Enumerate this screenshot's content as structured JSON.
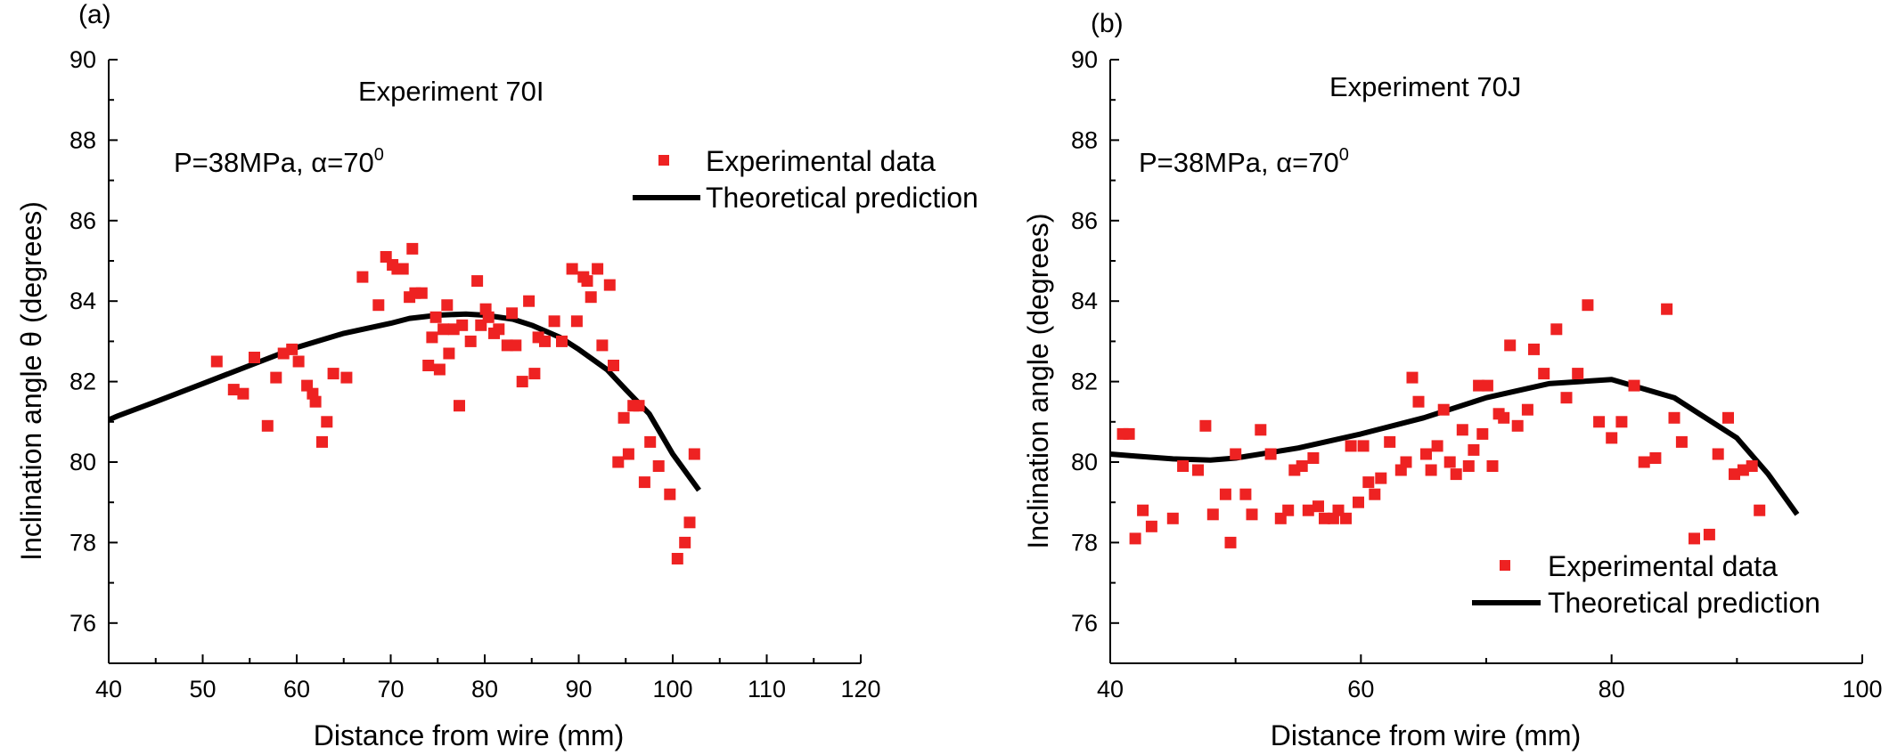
{
  "colors": {
    "marker": "#ee2222",
    "line": "#000000",
    "axis": "#000000"
  },
  "chart_data": [
    {
      "type": "scatter",
      "panel_label": "(a)",
      "title": "Experiment 70I",
      "annotation": "P=38MPa, α=70",
      "annotation_sup": "0",
      "xlabel": "Distance from wire (mm)",
      "ylabel": "Inclination angle θ (degrees)",
      "xlim": [
        40,
        120
      ],
      "ylim": [
        75,
        90
      ],
      "xticks": [
        40,
        50,
        60,
        70,
        80,
        90,
        100,
        110,
        120
      ],
      "yticks": [
        76,
        78,
        80,
        82,
        84,
        86,
        88,
        90
      ],
      "legend_position": "top-right",
      "series": [
        {
          "name": "Experimental data",
          "kind": "scatter",
          "points": [
            [
              51.5,
              82.5
            ],
            [
              53.3,
              81.8
            ],
            [
              54.3,
              81.7
            ],
            [
              55.5,
              82.6
            ],
            [
              56.9,
              80.9
            ],
            [
              57.8,
              82.1
            ],
            [
              58.6,
              82.7
            ],
            [
              59.5,
              82.8
            ],
            [
              60.2,
              82.5
            ],
            [
              61.1,
              81.9
            ],
            [
              61.7,
              81.7
            ],
            [
              62.0,
              81.5
            ],
            [
              62.7,
              80.5
            ],
            [
              63.2,
              81.0
            ],
            [
              63.9,
              82.2
            ],
            [
              65.3,
              82.1
            ],
            [
              67.0,
              84.6
            ],
            [
              68.7,
              83.9
            ],
            [
              69.5,
              85.1
            ],
            [
              70.2,
              84.9
            ],
            [
              70.7,
              84.8
            ],
            [
              71.3,
              84.8
            ],
            [
              72.0,
              84.1
            ],
            [
              72.3,
              85.3
            ],
            [
              72.6,
              84.2
            ],
            [
              73.3,
              84.2
            ],
            [
              74.0,
              82.4
            ],
            [
              74.4,
              83.1
            ],
            [
              74.8,
              83.6
            ],
            [
              75.2,
              82.3
            ],
            [
              75.6,
              83.3
            ],
            [
              76.0,
              83.9
            ],
            [
              76.2,
              82.7
            ],
            [
              76.7,
              83.3
            ],
            [
              77.3,
              81.4
            ],
            [
              77.6,
              83.4
            ],
            [
              78.5,
              83.0
            ],
            [
              79.2,
              84.5
            ],
            [
              79.6,
              83.4
            ],
            [
              80.1,
              83.8
            ],
            [
              80.4,
              83.6
            ],
            [
              81.0,
              83.2
            ],
            [
              81.5,
              83.3
            ],
            [
              82.4,
              82.9
            ],
            [
              82.9,
              83.7
            ],
            [
              83.3,
              82.9
            ],
            [
              84.0,
              82.0
            ],
            [
              84.7,
              84.0
            ],
            [
              85.3,
              82.2
            ],
            [
              85.7,
              83.1
            ],
            [
              86.4,
              83.0
            ],
            [
              87.4,
              83.5
            ],
            [
              88.2,
              83.0
            ],
            [
              89.3,
              84.8
            ],
            [
              89.8,
              83.5
            ],
            [
              90.5,
              84.6
            ],
            [
              90.9,
              84.5
            ],
            [
              91.3,
              84.1
            ],
            [
              92.0,
              84.8
            ],
            [
              92.5,
              82.9
            ],
            [
              93.3,
              84.4
            ],
            [
              93.7,
              82.4
            ],
            [
              94.2,
              80.0
            ],
            [
              94.8,
              81.1
            ],
            [
              95.3,
              80.2
            ],
            [
              95.8,
              81.4
            ],
            [
              96.4,
              81.4
            ],
            [
              97.0,
              79.5
            ],
            [
              97.6,
              80.5
            ],
            [
              98.5,
              79.9
            ],
            [
              99.7,
              79.2
            ],
            [
              100.5,
              77.6
            ],
            [
              101.3,
              78.0
            ],
            [
              101.8,
              78.5
            ],
            [
              102.3,
              80.2
            ]
          ]
        },
        {
          "name": "Theoretical prediction",
          "kind": "line",
          "points": [
            [
              40,
              81.05
            ],
            [
              41,
              81.15
            ],
            [
              45,
              81.5
            ],
            [
              50,
              81.95
            ],
            [
              55,
              82.4
            ],
            [
              60,
              82.85
            ],
            [
              65,
              83.2
            ],
            [
              70,
              83.45
            ],
            [
              72,
              83.57
            ],
            [
              75,
              83.65
            ],
            [
              78,
              83.68
            ],
            [
              80,
              83.65
            ],
            [
              83,
              83.55
            ],
            [
              85,
              83.4
            ],
            [
              88,
              83.1
            ],
            [
              90,
              82.8
            ],
            [
              93,
              82.3
            ],
            [
              95,
              81.8
            ],
            [
              97.5,
              81.2
            ],
            [
              100,
              80.2
            ],
            [
              102.8,
              79.3
            ]
          ]
        }
      ]
    },
    {
      "type": "scatter",
      "panel_label": "(b)",
      "title": "Experiment 70J",
      "annotation": "P=38MPa, α=70",
      "annotation_sup": "0",
      "xlabel": "Distance from wire (mm)",
      "ylabel": "Inclination angle (degrees)",
      "xlim": [
        40,
        100
      ],
      "ylim": [
        75,
        90
      ],
      "xticks": [
        40,
        60,
        80,
        100
      ],
      "yticks": [
        76,
        78,
        80,
        82,
        84,
        86,
        88,
        90
      ],
      "legend_position": "bottom-right",
      "series": [
        {
          "name": "Experimental data",
          "kind": "scatter",
          "points": [
            [
              41.0,
              80.7
            ],
            [
              41.5,
              80.7
            ],
            [
              42.0,
              78.1
            ],
            [
              42.6,
              78.8
            ],
            [
              43.3,
              78.4
            ],
            [
              45.0,
              78.6
            ],
            [
              45.8,
              79.9
            ],
            [
              47.0,
              79.8
            ],
            [
              47.6,
              80.9
            ],
            [
              48.2,
              78.7
            ],
            [
              49.2,
              79.2
            ],
            [
              49.6,
              78.0
            ],
            [
              50.0,
              80.2
            ],
            [
              50.8,
              79.2
            ],
            [
              51.3,
              78.7
            ],
            [
              52.0,
              80.8
            ],
            [
              52.8,
              80.2
            ],
            [
              53.6,
              78.6
            ],
            [
              54.2,
              78.8
            ],
            [
              54.7,
              79.8
            ],
            [
              55.3,
              79.9
            ],
            [
              55.8,
              78.8
            ],
            [
              56.2,
              80.1
            ],
            [
              56.6,
              78.9
            ],
            [
              57.1,
              78.6
            ],
            [
              57.8,
              78.6
            ],
            [
              58.2,
              78.8
            ],
            [
              58.8,
              78.6
            ],
            [
              59.2,
              80.4
            ],
            [
              59.8,
              79.0
            ],
            [
              60.2,
              80.4
            ],
            [
              60.6,
              79.5
            ],
            [
              61.1,
              79.2
            ],
            [
              61.6,
              79.6
            ],
            [
              62.3,
              80.5
            ],
            [
              63.2,
              79.8
            ],
            [
              63.6,
              80.0
            ],
            [
              64.1,
              82.1
            ],
            [
              64.6,
              81.5
            ],
            [
              65.2,
              80.2
            ],
            [
              65.6,
              79.8
            ],
            [
              66.1,
              80.4
            ],
            [
              66.6,
              81.3
            ],
            [
              67.1,
              80.0
            ],
            [
              67.6,
              79.7
            ],
            [
              68.1,
              80.8
            ],
            [
              68.6,
              79.9
            ],
            [
              69.0,
              80.3
            ],
            [
              69.4,
              81.9
            ],
            [
              69.7,
              80.7
            ],
            [
              70.1,
              81.9
            ],
            [
              70.5,
              79.9
            ],
            [
              71.0,
              81.2
            ],
            [
              71.4,
              81.1
            ],
            [
              71.9,
              82.9
            ],
            [
              72.5,
              80.9
            ],
            [
              73.3,
              81.3
            ],
            [
              73.8,
              82.8
            ],
            [
              74.6,
              82.2
            ],
            [
              75.6,
              83.3
            ],
            [
              76.4,
              81.6
            ],
            [
              77.3,
              82.2
            ],
            [
              78.1,
              83.9
            ],
            [
              79.0,
              81.0
            ],
            [
              80.0,
              80.6
            ],
            [
              80.8,
              81.0
            ],
            [
              81.8,
              81.9
            ],
            [
              82.6,
              80.0
            ],
            [
              83.5,
              80.1
            ],
            [
              84.4,
              83.8
            ],
            [
              85.0,
              81.1
            ],
            [
              85.6,
              80.5
            ],
            [
              86.6,
              78.1
            ],
            [
              87.8,
              78.2
            ],
            [
              88.5,
              80.2
            ],
            [
              89.3,
              81.1
            ],
            [
              89.8,
              79.7
            ],
            [
              90.5,
              79.8
            ],
            [
              91.2,
              79.9
            ],
            [
              91.8,
              78.8
            ]
          ]
        },
        {
          "name": "Theoretical prediction",
          "kind": "line",
          "points": [
            [
              40,
              80.2
            ],
            [
              42,
              80.15
            ],
            [
              45,
              80.08
            ],
            [
              48,
              80.05
            ],
            [
              50,
              80.1
            ],
            [
              55,
              80.35
            ],
            [
              60,
              80.7
            ],
            [
              65,
              81.1
            ],
            [
              70,
              81.6
            ],
            [
              75,
              81.95
            ],
            [
              80,
              82.05
            ],
            [
              85,
              81.6
            ],
            [
              87,
              81.2
            ],
            [
              90,
              80.6
            ],
            [
              92.5,
              79.7
            ],
            [
              94.8,
              78.7
            ]
          ]
        }
      ]
    }
  ]
}
